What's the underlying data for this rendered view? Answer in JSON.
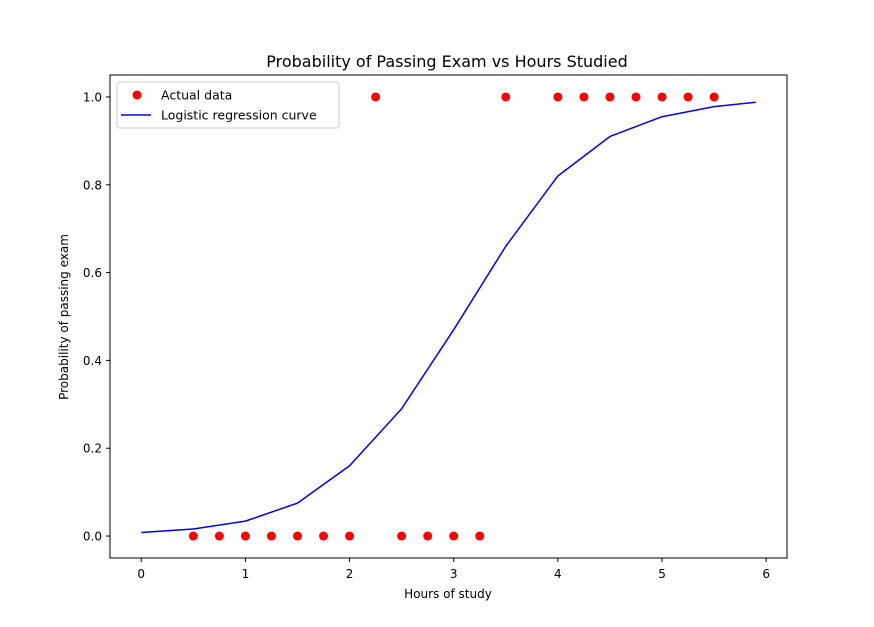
{
  "chart_data": {
    "type": "scatter",
    "title": "Probability of Passing Exam vs Hours Studied",
    "xlabel": "Hours of study",
    "ylabel": "Probability of passing exam",
    "xlim": [
      -0.3,
      6.2
    ],
    "ylim": [
      -0.05,
      1.05
    ],
    "xticks": [
      0,
      1,
      2,
      3,
      4,
      5,
      6
    ],
    "yticks": [
      0.0,
      0.2,
      0.4,
      0.6,
      0.8,
      1.0
    ],
    "ytick_labels": [
      "0.0",
      "0.2",
      "0.4",
      "0.6",
      "0.8",
      "1.0"
    ],
    "grid": false,
    "legend_placement": "top-left",
    "series": [
      {
        "name": "Actual data",
        "kind": "scatter",
        "color": "#ff0000",
        "x": [
          0.5,
          0.75,
          1.0,
          1.25,
          1.5,
          1.75,
          2.0,
          2.25,
          2.5,
          2.75,
          3.0,
          3.25,
          3.5,
          4.0,
          4.25,
          4.5,
          4.75,
          5.0,
          5.25,
          5.5
        ],
        "y": [
          0,
          0,
          0,
          0,
          0,
          0,
          0,
          1,
          0,
          0,
          0,
          0,
          1,
          1,
          1,
          1,
          1,
          1,
          1,
          1
        ]
      },
      {
        "name": "Logistic regression curve",
        "kind": "line",
        "color": "#0000ff",
        "x": [
          0.0,
          0.5,
          1.0,
          1.5,
          2.0,
          2.5,
          3.0,
          3.5,
          4.0,
          4.5,
          5.0,
          5.5,
          5.9
        ],
        "y": [
          0.008,
          0.016,
          0.034,
          0.075,
          0.16,
          0.29,
          0.47,
          0.66,
          0.82,
          0.91,
          0.955,
          0.978,
          0.988
        ]
      }
    ]
  }
}
